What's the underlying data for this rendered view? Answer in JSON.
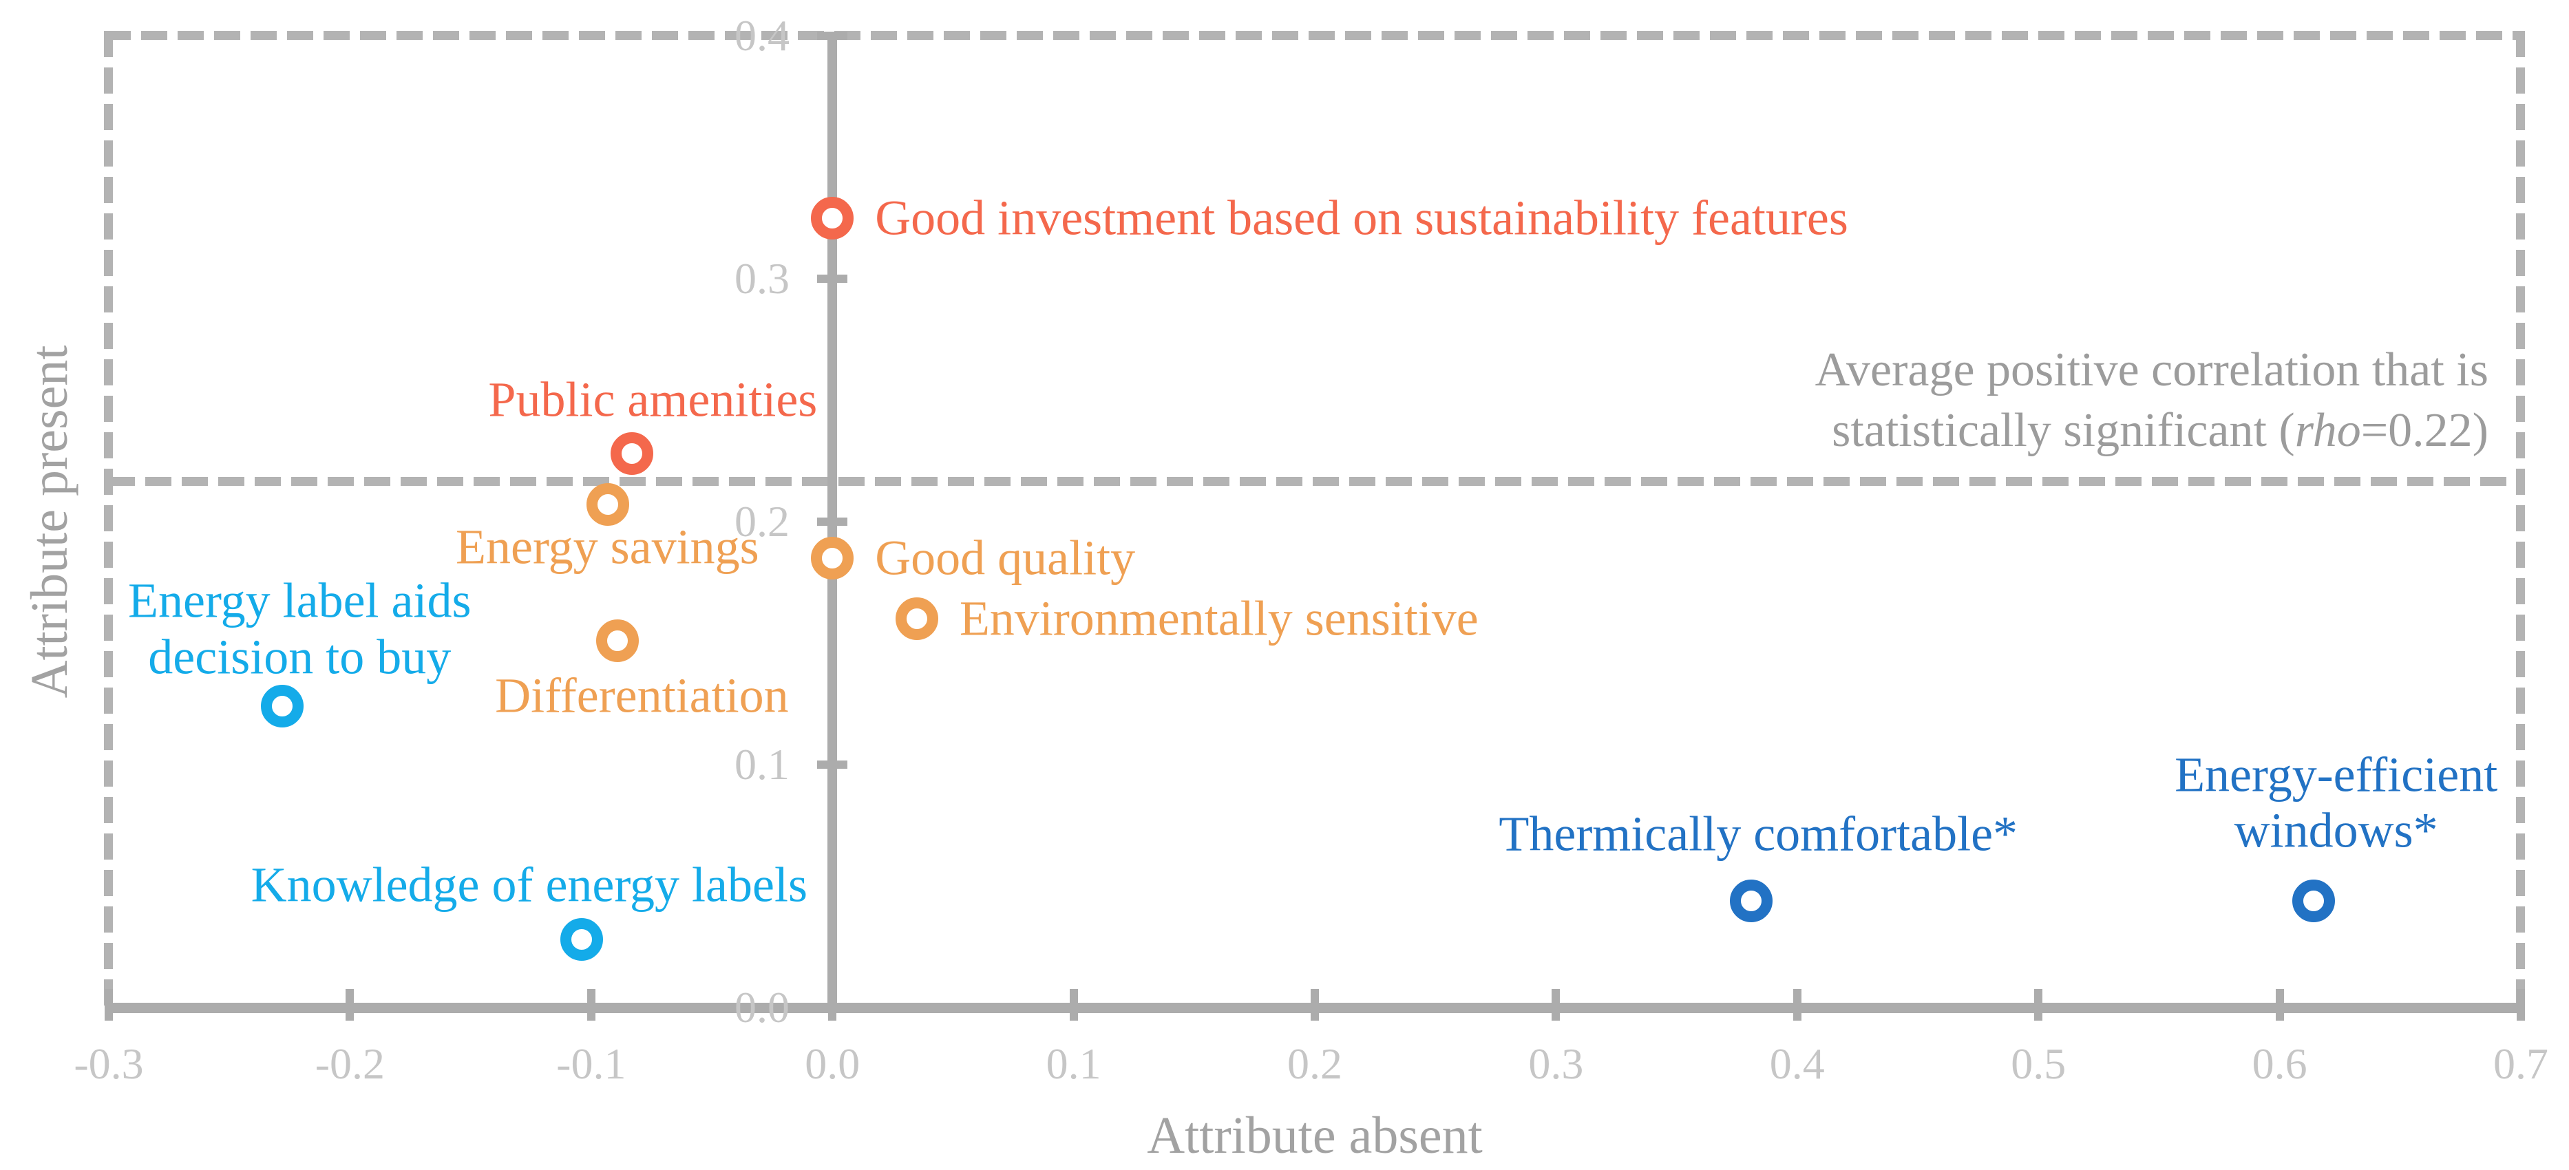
{
  "axes": {
    "x": {
      "title": "Attribute absent",
      "min": -0.3,
      "max": 0.7,
      "tick_values": [
        -0.3,
        -0.2,
        -0.1,
        0.0,
        0.1,
        0.2,
        0.3,
        0.4,
        0.5,
        0.6,
        0.7
      ],
      "tick_labels": [
        "-0.3",
        "-0.2",
        "-0.1",
        "0.0",
        "0.1",
        "0.2",
        "0.3",
        "0.4",
        "0.5",
        "0.6",
        "0.7"
      ]
    },
    "y": {
      "title": "Attribute present",
      "min": 0.0,
      "max": 0.4,
      "tick_values": [
        0.0,
        0.1,
        0.2,
        0.3,
        0.4
      ],
      "tick_labels": [
        "0.0",
        "0.1",
        "0.2",
        "0.3",
        "0.4"
      ]
    }
  },
  "annotation": {
    "line1": "Average positive correlation that is",
    "line2_prefix": "statistically significant (",
    "rho_word": "rho",
    "line2_suffix": "=0.22)",
    "rho_value": 0.22
  },
  "chart_data": {
    "type": "scatter",
    "title": "",
    "xlabel": "Attribute absent",
    "ylabel": "Attribute present",
    "xlim": [
      -0.3,
      0.7
    ],
    "ylim": [
      0.0,
      0.4
    ],
    "grid": false,
    "legend": false,
    "marker_style": "open-ring",
    "significance_line": {
      "rho": 0.22,
      "y_position": 0.2165,
      "style": "dashed",
      "color": "#b3b3b3"
    },
    "series": [
      {
        "name": "red-group",
        "color": "#f4684c",
        "points": [
          {
            "label": "Good investment based on sustainability features",
            "x": 0.0,
            "y": 0.325,
            "label_lines": [
              "Good investment based on sustainability features"
            ],
            "anchor": "left",
            "dx": 62,
            "dy": 0
          },
          {
            "label": "Public amenities",
            "x": -0.083,
            "y": 0.228,
            "label_lines": [
              "Public amenities"
            ],
            "anchor": "center",
            "dx": 30,
            "dy": -78
          }
        ]
      },
      {
        "name": "orange-group",
        "color": "#efa053",
        "points": [
          {
            "label": "Energy savings",
            "x": -0.093,
            "y": 0.207,
            "label_lines": [
              "Energy savings"
            ],
            "anchor": "center",
            "dx": -1,
            "dy": 62
          },
          {
            "label": "Good quality",
            "x": 0.0,
            "y": 0.185,
            "label_lines": [
              "Good quality"
            ],
            "anchor": "left",
            "dx": 62,
            "dy": 0
          },
          {
            "label": "Environmentally sensitive",
            "x": 0.035,
            "y": 0.16,
            "label_lines": [
              "Environmentally sensitive"
            ],
            "anchor": "left",
            "dx": 62,
            "dy": 0
          },
          {
            "label": "Differentiation",
            "x": -0.089,
            "y": 0.151,
            "label_lines": [
              "Differentiation"
            ],
            "anchor": "center",
            "dx": 35,
            "dy": 80
          }
        ]
      },
      {
        "name": "cyan-group",
        "color": "#14abe9",
        "points": [
          {
            "label": "Energy label aids decision to buy",
            "x": -0.228,
            "y": 0.124,
            "label_lines": [
              "Energy label aids",
              "decision to buy"
            ],
            "anchor": "center",
            "dx": 25,
            "dy": -112
          },
          {
            "label": "Knowledge of energy labels",
            "x": -0.104,
            "y": 0.028,
            "label_lines": [
              "Knowledge of energy labels"
            ],
            "anchor": "center",
            "dx": -76,
            "dy": -79
          }
        ]
      },
      {
        "name": "blue-group",
        "color": "#2272c4",
        "points": [
          {
            "label": "Thermically comfortable*",
            "x": 0.381,
            "y": 0.044,
            "label_lines": [
              "Thermically comfortable*"
            ],
            "anchor": "center",
            "dx": 10,
            "dy": -97
          },
          {
            "label": "Energy-efficient windows*",
            "x": 0.614,
            "y": 0.044,
            "label_lines": [
              "Energy-efficient",
              "windows*"
            ],
            "anchor": "center",
            "dx": 33,
            "dy": -142
          }
        ]
      }
    ]
  }
}
